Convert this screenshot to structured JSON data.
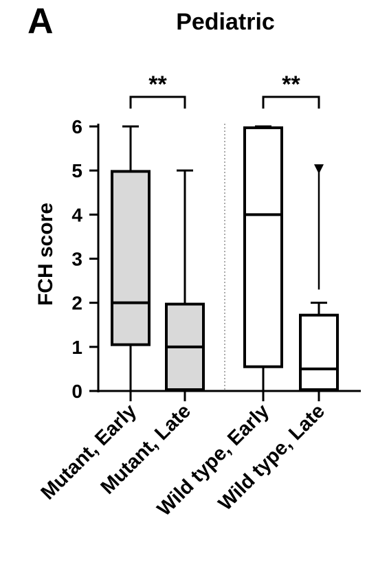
{
  "panel_letter": "A",
  "chart_data": {
    "type": "box",
    "title": "Pediatric",
    "ylabel": "FCH score",
    "xlabel": "",
    "ylim": [
      0,
      6
    ],
    "yticks": [
      "0",
      "1",
      "2",
      "3",
      "4",
      "5",
      "6"
    ],
    "grid": false,
    "legend": "none",
    "categories": [
      "Mutant, Early",
      "Mutant, Late",
      "Wild type, Early",
      "Wild type, Late"
    ],
    "boxes": [
      {
        "category": "Mutant, Early",
        "min": 0,
        "q1": 1.05,
        "median": 2,
        "q3": 4.98,
        "max": 6,
        "fill": "#d9d9d9"
      },
      {
        "category": "Mutant, Late",
        "min": 0,
        "q1": 0.03,
        "median": 1,
        "q3": 1.97,
        "max": 5,
        "fill": "#d9d9d9"
      },
      {
        "category": "Wild type, Early",
        "min": 0,
        "q1": 0.55,
        "median": 4,
        "q3": 5.97,
        "max": 6,
        "fill": "#ffffff"
      },
      {
        "category": "Wild type, Late",
        "min": 0,
        "q1": 0.03,
        "median": 0.5,
        "q3": 1.72,
        "max": 2,
        "fill": "#ffffff"
      }
    ],
    "outliers": [
      {
        "category": "Wild type, Late",
        "value": 5
      }
    ],
    "significance": [
      {
        "from": "Mutant, Early",
        "to": "Mutant, Late",
        "label": "**"
      },
      {
        "from": "Wild type, Early",
        "to": "Wild type, Late",
        "label": "**"
      }
    ],
    "colors": {
      "stroke": "#000000",
      "mutant_fill": "#d9d9d9",
      "wildtype_fill": "#ffffff"
    }
  }
}
